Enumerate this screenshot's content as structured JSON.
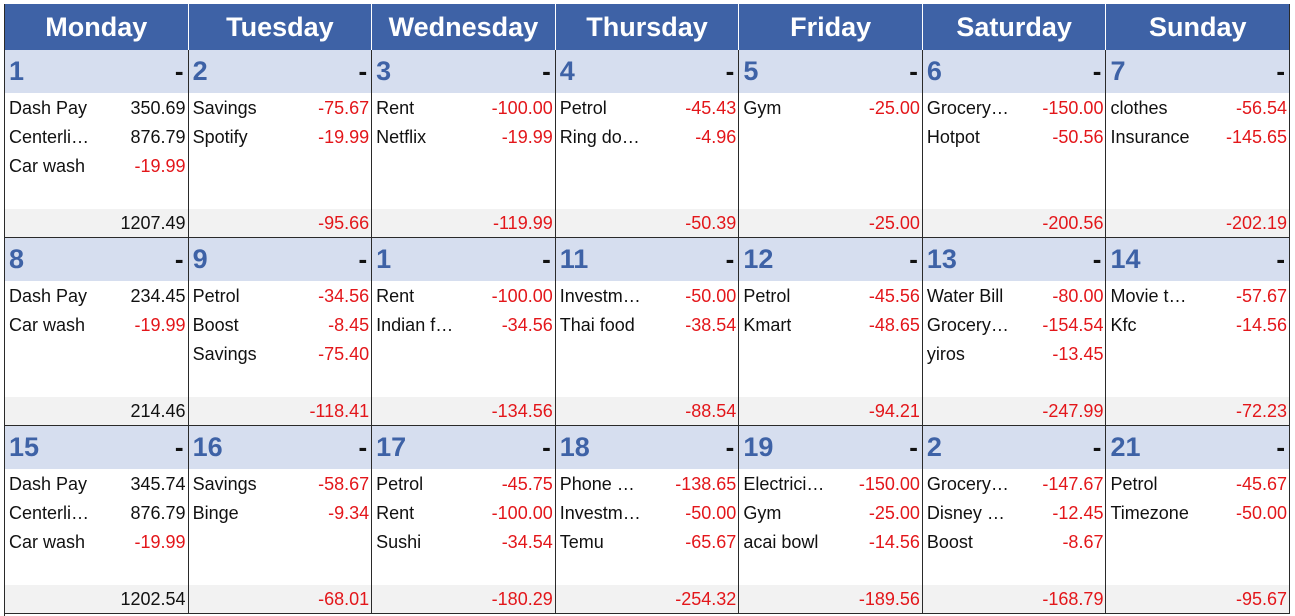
{
  "days_of_week": [
    "Monday",
    "Tuesday",
    "Wednesday",
    "Thursday",
    "Friday",
    "Saturday",
    "Sunday"
  ],
  "weeks": [
    {
      "days": [
        {
          "date": "1",
          "dash": "-",
          "entries": [
            {
              "label": "Dash Pay",
              "amount": "350.69",
              "negative": false
            },
            {
              "label": "Centerli…",
              "amount": "876.79",
              "negative": false
            },
            {
              "label": "Car wash",
              "amount": "-19.99",
              "negative": true
            }
          ],
          "total": "1207.49",
          "total_negative": false
        },
        {
          "date": "2",
          "dash": "-",
          "entries": [
            {
              "label": "Savings",
              "amount": "-75.67",
              "negative": true
            },
            {
              "label": "Spotify",
              "amount": "-19.99",
              "negative": true
            }
          ],
          "total": "-95.66",
          "total_negative": true
        },
        {
          "date": "3",
          "dash": "-",
          "entries": [
            {
              "label": "Rent",
              "amount": "-100.00",
              "negative": true
            },
            {
              "label": "Netflix",
              "amount": "-19.99",
              "negative": true
            }
          ],
          "total": "-119.99",
          "total_negative": true
        },
        {
          "date": "4",
          "dash": "-",
          "entries": [
            {
              "label": "Petrol",
              "amount": "-45.43",
              "negative": true
            },
            {
              "label": "Ring do…",
              "amount": "-4.96",
              "negative": true
            }
          ],
          "total": "-50.39",
          "total_negative": true
        },
        {
          "date": "5",
          "dash": "-",
          "entries": [
            {
              "label": "Gym",
              "amount": "-25.00",
              "negative": true
            }
          ],
          "total": "-25.00",
          "total_negative": true
        },
        {
          "date": "6",
          "dash": "-",
          "entries": [
            {
              "label": "Grocery…",
              "amount": "-150.00",
              "negative": true
            },
            {
              "label": "Hotpot",
              "amount": "-50.56",
              "negative": true
            }
          ],
          "total": "-200.56",
          "total_negative": true
        },
        {
          "date": "7",
          "dash": "-",
          "entries": [
            {
              "label": "clothes",
              "amount": "-56.54",
              "negative": true
            },
            {
              "label": "Insurance",
              "amount": "-145.65",
              "negative": true
            }
          ],
          "total": "-202.19",
          "total_negative": true
        }
      ]
    },
    {
      "days": [
        {
          "date": "8",
          "dash": "-",
          "entries": [
            {
              "label": "Dash Pay",
              "amount": "234.45",
              "negative": false
            },
            {
              "label": "Car wash",
              "amount": "-19.99",
              "negative": true
            }
          ],
          "total": "214.46",
          "total_negative": false
        },
        {
          "date": "9",
          "dash": "-",
          "entries": [
            {
              "label": "Petrol",
              "amount": "-34.56",
              "negative": true
            },
            {
              "label": "Boost",
              "amount": "-8.45",
              "negative": true
            },
            {
              "label": "Savings",
              "amount": "-75.40",
              "negative": true
            }
          ],
          "total": "-118.41",
          "total_negative": true
        },
        {
          "date": "1",
          "dash": "-",
          "entries": [
            {
              "label": "Rent",
              "amount": "-100.00",
              "negative": true
            },
            {
              "label": "Indian f…",
              "amount": "-34.56",
              "negative": true
            }
          ],
          "total": "-134.56",
          "total_negative": true
        },
        {
          "date": "11",
          "dash": "-",
          "entries": [
            {
              "label": "Investm…",
              "amount": "-50.00",
              "negative": true
            },
            {
              "label": "Thai food",
              "amount": "-38.54",
              "negative": true
            }
          ],
          "total": "-88.54",
          "total_negative": true
        },
        {
          "date": "12",
          "dash": "-",
          "entries": [
            {
              "label": "Petrol",
              "amount": "-45.56",
              "negative": true
            },
            {
              "label": "Kmart",
              "amount": "-48.65",
              "negative": true
            }
          ],
          "total": "-94.21",
          "total_negative": true
        },
        {
          "date": "13",
          "dash": "-",
          "entries": [
            {
              "label": "Water Bill",
              "amount": "-80.00",
              "negative": true
            },
            {
              "label": "Grocery…",
              "amount": "-154.54",
              "negative": true
            },
            {
              "label": "yiros",
              "amount": "-13.45",
              "negative": true
            }
          ],
          "total": "-247.99",
          "total_negative": true
        },
        {
          "date": "14",
          "dash": "-",
          "entries": [
            {
              "label": "Movie t…",
              "amount": "-57.67",
              "negative": true
            },
            {
              "label": "Kfc",
              "amount": "-14.56",
              "negative": true
            }
          ],
          "total": "-72.23",
          "total_negative": true
        }
      ]
    },
    {
      "days": [
        {
          "date": "15",
          "dash": "-",
          "entries": [
            {
              "label": "Dash Pay",
              "amount": "345.74",
              "negative": false
            },
            {
              "label": "Centerli…",
              "amount": "876.79",
              "negative": false
            },
            {
              "label": "Car wash",
              "amount": "-19.99",
              "negative": true
            }
          ],
          "total": "1202.54",
          "total_negative": false
        },
        {
          "date": "16",
          "dash": "-",
          "entries": [
            {
              "label": "Savings",
              "amount": "-58.67",
              "negative": true
            },
            {
              "label": "Binge",
              "amount": "-9.34",
              "negative": true
            }
          ],
          "total": "-68.01",
          "total_negative": true
        },
        {
          "date": "17",
          "dash": "-",
          "entries": [
            {
              "label": "Petrol",
              "amount": "-45.75",
              "negative": true
            },
            {
              "label": "Rent",
              "amount": "-100.00",
              "negative": true
            },
            {
              "label": "Sushi",
              "amount": "-34.54",
              "negative": true
            }
          ],
          "total": "-180.29",
          "total_negative": true
        },
        {
          "date": "18",
          "dash": "-",
          "entries": [
            {
              "label": "Phone …",
              "amount": "-138.65",
              "negative": true
            },
            {
              "label": "Investm…",
              "amount": "-50.00",
              "negative": true
            },
            {
              "label": "Temu",
              "amount": "-65.67",
              "negative": true
            }
          ],
          "total": "-254.32",
          "total_negative": true
        },
        {
          "date": "19",
          "dash": "-",
          "entries": [
            {
              "label": "Electrici…",
              "amount": "-150.00",
              "negative": true
            },
            {
              "label": "Gym",
              "amount": "-25.00",
              "negative": true
            },
            {
              "label": "acai bowl",
              "amount": "-14.56",
              "negative": true
            }
          ],
          "total": "-189.56",
          "total_negative": true
        },
        {
          "date": "2",
          "dash": "-",
          "entries": [
            {
              "label": "Grocery…",
              "amount": "-147.67",
              "negative": true
            },
            {
              "label": "Disney …",
              "amount": "-12.45",
              "negative": true
            },
            {
              "label": "Boost",
              "amount": "-8.67",
              "negative": true
            }
          ],
          "total": "-168.79",
          "total_negative": true
        },
        {
          "date": "21",
          "dash": "-",
          "entries": [
            {
              "label": "Petrol",
              "amount": "-45.67",
              "negative": true
            },
            {
              "label": "Timezone",
              "amount": "-50.00",
              "negative": true
            }
          ],
          "total": "-95.67",
          "total_negative": true
        }
      ]
    }
  ],
  "colors": {
    "header_bg": "#3e62a6",
    "date_bar_bg": "#d6deef",
    "date_text": "#3e62a6",
    "negative_text": "#e3161a",
    "total_bar_bg": "#f2f2f2"
  }
}
